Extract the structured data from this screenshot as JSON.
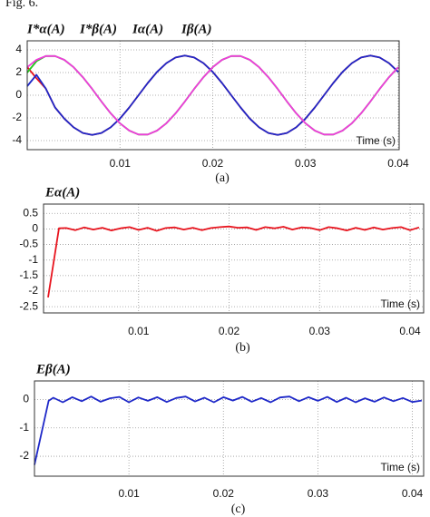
{
  "figure_label": "Fig. 6.",
  "chart_data": [
    {
      "type": "line",
      "caption": "(a)",
      "xlabel": "Time (s)",
      "x": [
        0,
        0.001,
        0.002,
        0.003,
        0.004,
        0.005,
        0.006,
        0.007,
        0.008,
        0.009,
        0.01,
        0.011,
        0.012,
        0.013,
        0.014,
        0.015,
        0.016,
        0.017,
        0.018,
        0.019,
        0.02,
        0.021,
        0.022,
        0.023,
        0.024,
        0.025,
        0.026,
        0.027,
        0.028,
        0.029,
        0.03,
        0.031,
        0.032,
        0.033,
        0.034,
        0.035,
        0.036,
        0.037,
        0.038,
        0.039,
        0.04
      ],
      "series": [
        {
          "name": "I*α(A)",
          "color": "#e8141e",
          "values": [
            2.5,
            1.5,
            0.6,
            -1.08,
            -2.06,
            -2.83,
            -3.33,
            -3.5,
            -3.33,
            -2.83,
            -2.06,
            -1.08,
            0,
            1.08,
            2.06,
            2.83,
            3.33,
            3.5,
            3.33,
            2.83,
            2.06,
            1.08,
            0,
            -1.08,
            -2.06,
            -2.83,
            -3.33,
            -3.5,
            -3.33,
            -2.83,
            -2.06,
            -1.08,
            0,
            1.08,
            2.06,
            2.83,
            3.33,
            3.5,
            3.33,
            2.83,
            2.06
          ]
        },
        {
          "name": "Iα(A)",
          "color": "#22c81e",
          "values": [
            2.0,
            3.0,
            3.46,
            3.46,
            3.12,
            2.47,
            1.59,
            0.55,
            -0.55,
            -1.59,
            -2.47,
            -3.12,
            -3.46,
            -3.46,
            -3.12,
            -2.47,
            -1.59,
            -0.55,
            0.55,
            1.59,
            2.47,
            3.12,
            3.46,
            3.46,
            3.12,
            2.47,
            1.59,
            0.55,
            -0.55,
            -1.59,
            -2.47,
            -3.12,
            -3.46,
            -3.46,
            -3.12,
            -2.47,
            -1.59,
            -0.55,
            0.55,
            1.59,
            2.47
          ]
        },
        {
          "name": "I*β(A)",
          "color": "#1e28c8",
          "values": [
            0.8,
            1.8,
            0.6,
            -1.08,
            -2.06,
            -2.83,
            -3.33,
            -3.5,
            -3.33,
            -2.83,
            -2.06,
            -1.08,
            0,
            1.08,
            2.06,
            2.83,
            3.33,
            3.5,
            3.33,
            2.83,
            2.06,
            1.08,
            0,
            -1.08,
            -2.06,
            -2.83,
            -3.33,
            -3.5,
            -3.33,
            -2.83,
            -2.06,
            -1.08,
            0,
            1.08,
            2.06,
            2.83,
            3.33,
            3.5,
            3.33,
            2.83,
            2.06
          ]
        },
        {
          "name": "Iβ(A)",
          "color": "#f03cdc",
          "values": [
            2.47,
            3.12,
            3.46,
            3.46,
            3.12,
            2.47,
            1.59,
            0.55,
            -0.55,
            -1.59,
            -2.47,
            -3.12,
            -3.46,
            -3.46,
            -3.12,
            -2.47,
            -1.59,
            -0.55,
            0.55,
            1.59,
            2.47,
            3.12,
            3.46,
            3.46,
            3.12,
            2.47,
            1.59,
            0.55,
            -0.55,
            -1.59,
            -2.47,
            -3.12,
            -3.46,
            -3.46,
            -3.12,
            -2.47,
            -1.59,
            -0.55,
            0.55,
            1.59,
            2.47
          ]
        }
      ],
      "legend_order": [
        0,
        2,
        1,
        3
      ],
      "xlim": [
        0,
        0.0401
      ],
      "xticks": [
        0.01,
        0.02,
        0.03,
        0.04
      ],
      "ylim": [
        -4.8,
        4.8
      ],
      "yticks": [
        4,
        2,
        0,
        -2,
        -4
      ],
      "grid": true
    },
    {
      "type": "line",
      "caption": "(b)",
      "xlabel": "Time (s)",
      "title": "Eα(A)",
      "title_color": "#e8141e",
      "x": [
        0,
        0.0012,
        0.002,
        0.003,
        0.004,
        0.005,
        0.006,
        0.007,
        0.008,
        0.009,
        0.01,
        0.011,
        0.012,
        0.013,
        0.014,
        0.015,
        0.016,
        0.017,
        0.018,
        0.019,
        0.02,
        0.021,
        0.022,
        0.023,
        0.024,
        0.025,
        0.026,
        0.027,
        0.028,
        0.029,
        0.03,
        0.031,
        0.032,
        0.033,
        0.034,
        0.035,
        0.036,
        0.037,
        0.038,
        0.039,
        0.04,
        0.041
      ],
      "series": [
        {
          "name": "Eα(A)",
          "color": "#e8141e",
          "values": [
            -2.2,
            0.02,
            0.03,
            -0.04,
            0.05,
            -0.02,
            0.04,
            -0.05,
            0.02,
            0.06,
            -0.03,
            0.04,
            -0.06,
            0.03,
            0.05,
            -0.02,
            0.04,
            -0.04,
            0.03,
            0.06,
            0.08,
            0.04,
            0.05,
            -0.03,
            0.06,
            0.02,
            0.07,
            -0.02,
            0.05,
            0.03,
            -0.04,
            0.06,
            0.02,
            -0.05,
            0.04,
            -0.03,
            0.05,
            -0.02,
            0.03,
            0.06,
            -0.04,
            0.05
          ]
        }
      ],
      "xlim": [
        -0.0005,
        0.0415
      ],
      "xticks": [
        0.01,
        0.02,
        0.03,
        0.04
      ],
      "ylim": [
        -2.7,
        0.8
      ],
      "yticks": [
        0.5,
        0,
        -0.5,
        -1,
        -1.5,
        -2,
        -2.5
      ],
      "grid": true
    },
    {
      "type": "line",
      "caption": "(c)",
      "xlabel": "Time (s)",
      "title": "Eβ(A)",
      "title_color": "#1e28c8",
      "x": [
        0,
        0.0015,
        0.002,
        0.003,
        0.004,
        0.005,
        0.006,
        0.007,
        0.008,
        0.009,
        0.01,
        0.011,
        0.012,
        0.013,
        0.014,
        0.015,
        0.016,
        0.017,
        0.018,
        0.019,
        0.02,
        0.021,
        0.022,
        0.023,
        0.024,
        0.025,
        0.026,
        0.027,
        0.028,
        0.029,
        0.03,
        0.031,
        0.032,
        0.033,
        0.034,
        0.035,
        0.036,
        0.037,
        0.038,
        0.039,
        0.04,
        0.041
      ],
      "series": [
        {
          "name": "Eβ(A)",
          "color": "#1e28c8",
          "values": [
            -2.3,
            -0.05,
            0.06,
            -0.1,
            0.08,
            -0.06,
            0.1,
            -0.08,
            0.04,
            0.09,
            -0.1,
            0.07,
            -0.05,
            0.08,
            -0.09,
            0.05,
            0.1,
            -0.07,
            0.06,
            -0.1,
            0.08,
            -0.04,
            0.09,
            -0.08,
            0.05,
            -0.1,
            0.07,
            0.1,
            -0.06,
            0.08,
            -0.05,
            0.09,
            -0.09,
            0.06,
            -0.1,
            0.04,
            -0.08,
            0.07,
            -0.06,
            0.05,
            -0.09,
            -0.04
          ]
        }
      ],
      "xlim": [
        0,
        0.0412
      ],
      "xticks": [
        0.01,
        0.02,
        0.03,
        0.04
      ],
      "ylim": [
        -2.7,
        0.65
      ],
      "yticks": [
        0,
        -1,
        -2
      ],
      "grid": true
    }
  ]
}
